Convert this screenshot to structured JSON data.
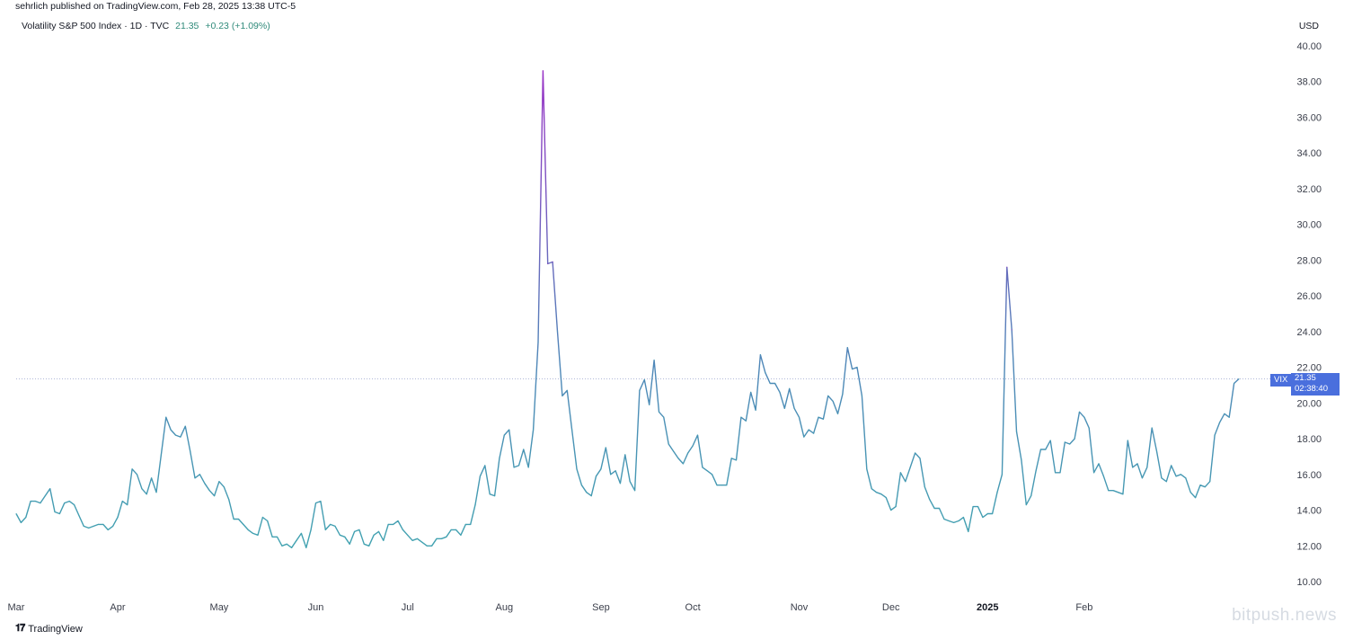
{
  "header": {
    "publisher": "sehrlich published on TradingView.com, Feb 28, 2025 13:38 UTC-5",
    "symbol": "Volatility S&P 500 Index · 1D · TVC",
    "last": "21.35",
    "change": "+0.23 (+1.09%)",
    "currency": "USD"
  },
  "price_label": {
    "ticker": "VIX",
    "price": "21.35",
    "countdown": "02:38:40"
  },
  "footer": {
    "brand": "TradingView",
    "watermark": "bitpush.news"
  },
  "colors": {
    "line_low": "#41a4b0",
    "line_high": "#9a2fc6",
    "price_tag": "#4a6fdd"
  },
  "chart_data": {
    "type": "line",
    "title": "Volatility S&P 500 Index · 1D · TVC",
    "xlabel": "",
    "ylabel": "USD",
    "ylim": [
      10,
      40
    ],
    "y_ticks": [
      "10.00",
      "12.00",
      "14.00",
      "16.00",
      "18.00",
      "20.00",
      "22.00",
      "24.00",
      "26.00",
      "28.00",
      "30.00",
      "32.00",
      "34.00",
      "36.00",
      "38.00",
      "40.00"
    ],
    "x_ticks": [
      {
        "label": "Mar",
        "index": 0
      },
      {
        "label": "Apr",
        "index": 21
      },
      {
        "label": "May",
        "index": 42
      },
      {
        "label": "Jun",
        "index": 62
      },
      {
        "label": "Jul",
        "index": 81
      },
      {
        "label": "Aug",
        "index": 101
      },
      {
        "label": "Sep",
        "index": 121
      },
      {
        "label": "Oct",
        "index": 140
      },
      {
        "label": "Nov",
        "index": 162
      },
      {
        "label": "Dec",
        "index": 181
      },
      {
        "label": "2025",
        "index": 201,
        "bold": true
      },
      {
        "label": "Feb",
        "index": 221
      }
    ],
    "last_value": 21.35,
    "series": [
      {
        "values": [
          13.8,
          13.3,
          13.6,
          14.5,
          14.5,
          14.4,
          14.8,
          15.2,
          13.9,
          13.8,
          14.4,
          14.5,
          14.3,
          13.7,
          13.1,
          13.0,
          13.1,
          13.2,
          13.2,
          12.9,
          13.1,
          13.6,
          14.5,
          14.3,
          16.3,
          16.0,
          15.2,
          14.9,
          15.8,
          15.0,
          17.1,
          19.2,
          18.5,
          18.2,
          18.1,
          18.7,
          17.3,
          15.8,
          16.0,
          15.5,
          15.1,
          14.8,
          15.6,
          15.3,
          14.6,
          13.5,
          13.5,
          13.2,
          12.9,
          12.7,
          12.6,
          13.6,
          13.4,
          12.5,
          12.5,
          12.0,
          12.1,
          11.9,
          12.3,
          12.7,
          11.9,
          12.9,
          14.4,
          14.5,
          12.9,
          13.2,
          13.1,
          12.6,
          12.5,
          12.1,
          12.8,
          12.9,
          12.1,
          12.0,
          12.6,
          12.8,
          12.3,
          13.2,
          13.2,
          13.4,
          12.9,
          12.6,
          12.3,
          12.4,
          12.2,
          12.0,
          12.0,
          12.4,
          12.4,
          12.5,
          12.9,
          12.9,
          12.6,
          13.2,
          13.2,
          14.3,
          15.9,
          16.5,
          14.9,
          14.8,
          16.9,
          18.2,
          18.5,
          16.4,
          16.5,
          17.4,
          16.4,
          18.5,
          23.4,
          38.6,
          27.8,
          27.9,
          24.0,
          20.4,
          20.7,
          18.5,
          16.3,
          15.4,
          15.0,
          14.8,
          15.9,
          16.3,
          17.5,
          16.0,
          16.2,
          15.5,
          17.1,
          15.6,
          15.1,
          20.7,
          21.3,
          19.9,
          22.4,
          19.5,
          19.2,
          17.7,
          17.3,
          16.9,
          16.6,
          17.2,
          17.6,
          18.2,
          16.4,
          16.2,
          16.0,
          15.4,
          15.4,
          15.4,
          16.9,
          16.8,
          19.2,
          19.0,
          20.6,
          19.6,
          22.7,
          21.7,
          21.1,
          21.1,
          20.6,
          19.7,
          20.8,
          19.7,
          19.2,
          18.1,
          18.5,
          18.3,
          19.2,
          19.1,
          20.4,
          20.1,
          19.4,
          20.5,
          23.1,
          21.9,
          22.0,
          20.4,
          16.3,
          15.2,
          15.0,
          14.9,
          14.7,
          14.0,
          14.2,
          16.1,
          15.6,
          16.4,
          17.2,
          16.9,
          15.3,
          14.6,
          14.1,
          14.1,
          13.5,
          13.4,
          13.3,
          13.4,
          13.6,
          12.8,
          14.2,
          14.2,
          13.6,
          13.8,
          13.8,
          15.0,
          16.0,
          27.6,
          24.1,
          18.4,
          16.8,
          14.3,
          14.8,
          16.2,
          17.4,
          17.4,
          17.9,
          16.1,
          16.1,
          17.8,
          17.7,
          18.0,
          19.5,
          19.2,
          18.6,
          16.1,
          16.6,
          15.9,
          15.1,
          15.1,
          15.0,
          14.9,
          17.9,
          16.4,
          16.6,
          15.8,
          16.4,
          18.6,
          17.3,
          15.8,
          15.6,
          16.5,
          15.9,
          16.0,
          15.8,
          15.0,
          14.7,
          15.4,
          15.3,
          15.6,
          18.2,
          18.9,
          19.4,
          19.2,
          21.1,
          21.35
        ]
      }
    ]
  }
}
